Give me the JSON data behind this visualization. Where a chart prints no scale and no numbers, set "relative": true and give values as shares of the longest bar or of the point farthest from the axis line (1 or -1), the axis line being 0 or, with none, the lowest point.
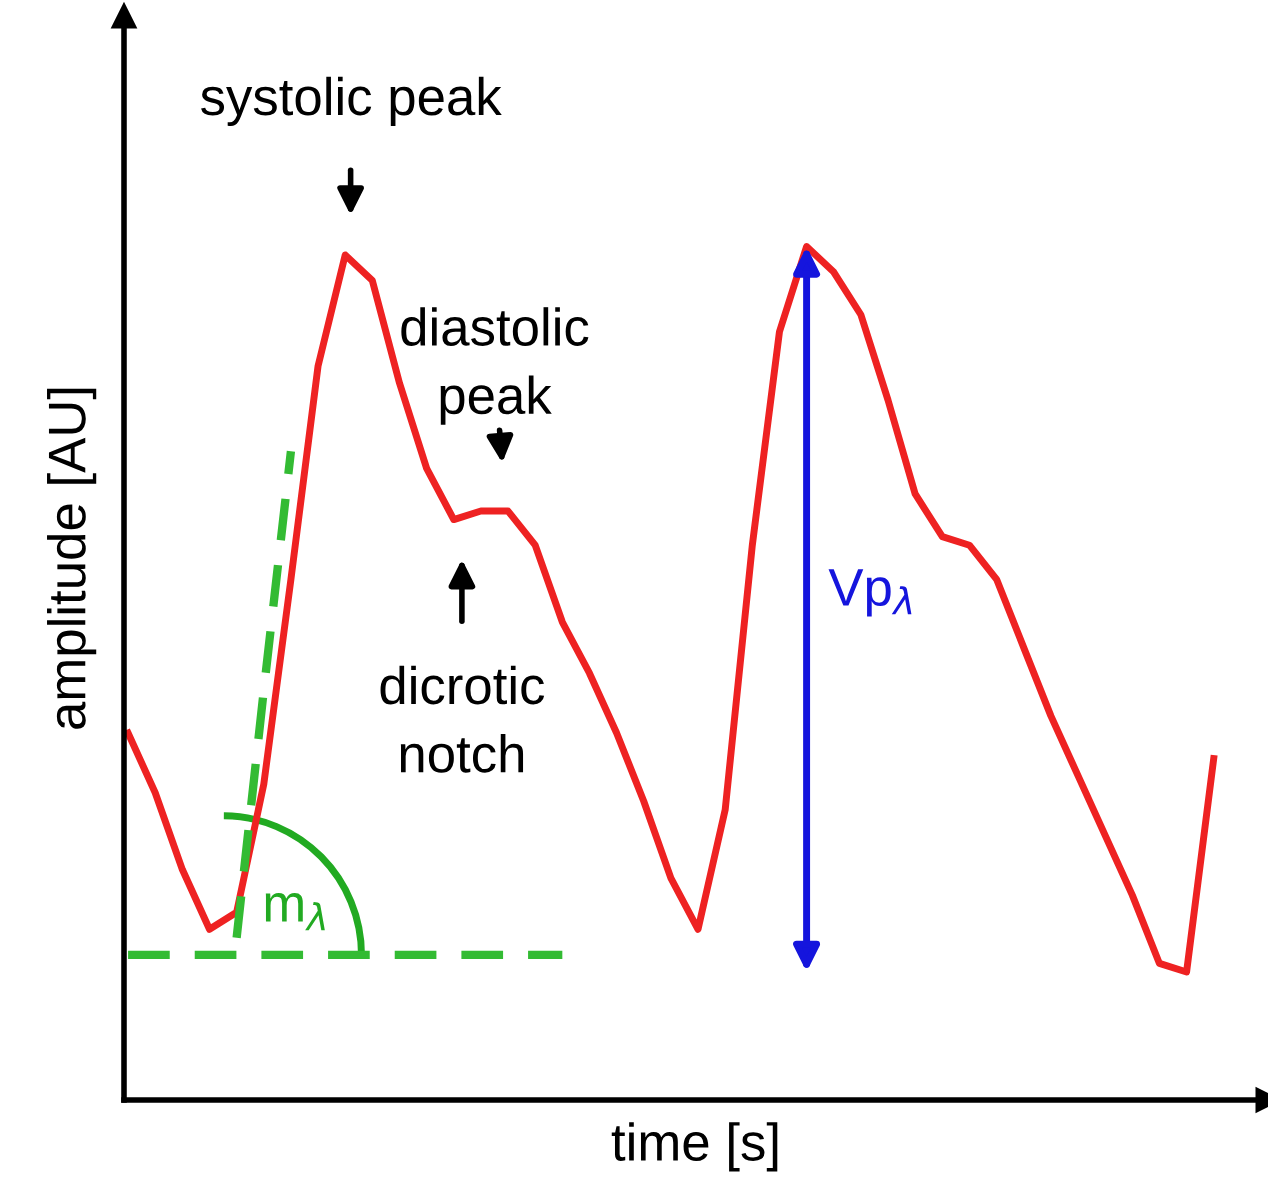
{
  "chart_data": {
    "type": "line",
    "relative": true,
    "xlabel": "time [s]",
    "ylabel": "amplitude [AU]",
    "legend": false,
    "categories": [
      null,
      null,
      null,
      null,
      null,
      null,
      null,
      null,
      null,
      null,
      null,
      null,
      null,
      null,
      null,
      null,
      null,
      null,
      null,
      null,
      null,
      null,
      null,
      null,
      null,
      null,
      null,
      null,
      null,
      null,
      null,
      null,
      null,
      null,
      null,
      null,
      null,
      null,
      null,
      null,
      null
    ],
    "series": [
      {
        "color": "#ee2222",
        "line_style": "solid",
        "values": [
          0.43,
          0.36,
          0.27,
          0.2,
          0.22,
          0.37,
          0.61,
          0.86,
          0.99,
          0.96,
          0.84,
          0.74,
          0.68,
          0.69,
          0.69,
          0.65,
          0.56,
          0.5,
          0.43,
          0.35,
          0.26,
          0.2,
          0.34,
          0.65,
          0.9,
          1.0,
          0.97,
          0.92,
          0.82,
          0.71,
          0.66,
          0.65,
          0.61,
          0.53,
          0.45,
          0.38,
          0.31,
          0.24,
          0.16,
          0.15,
          0.4
        ]
      },
      {
        "color": "#33bb33",
        "line_style": "dashed",
        "values": [
          null,
          null,
          null,
          null,
          0.19,
          0.48,
          0.76,
          null,
          null,
          null,
          null,
          null,
          null,
          null,
          null,
          null,
          null,
          null,
          null,
          null,
          null,
          null,
          null,
          null,
          null,
          null,
          null,
          null,
          null,
          null,
          null,
          null,
          null,
          null,
          null,
          null,
          null,
          null,
          null,
          null,
          null
        ]
      },
      {
        "color": "#33bb33",
        "line_style": "dashed",
        "values": [
          0.17,
          0.17,
          0.17,
          0.17,
          0.17,
          0.17,
          0.17,
          0.17,
          0.17,
          0.17,
          0.17,
          0.17,
          0.17,
          0.17,
          0.17,
          0.17,
          0.17,
          null,
          null,
          null,
          null,
          null,
          null,
          null,
          null,
          null,
          null,
          null,
          null,
          null,
          null,
          null,
          null,
          null,
          null,
          null,
          null,
          null,
          null,
          null,
          null
        ]
      }
    ],
    "annotations": [
      "systolic peak",
      "diastolic\npeak",
      "dicrotic\nnotch",
      "m$_{λ}$",
      "Vp$_{λ}$"
    ]
  }
}
